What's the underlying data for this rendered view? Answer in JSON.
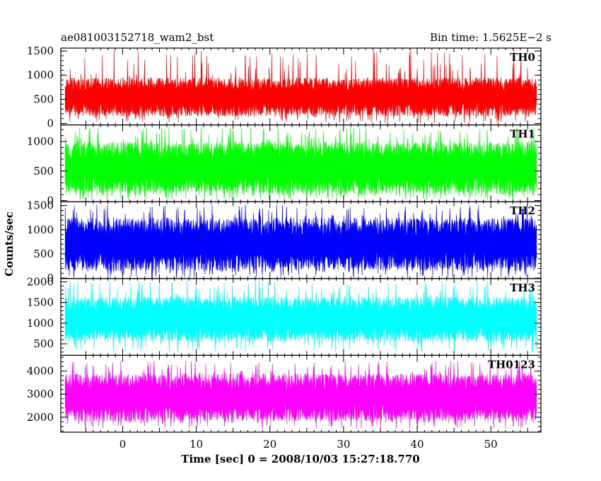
{
  "header": {
    "title": "ae081003152718_wam2_bst",
    "bin_time": "Bin time: 1.5625E−2 s"
  },
  "chart_data": {
    "type": "line",
    "title": "ae081003152718_wam2_bst",
    "subtitle": "Bin time: 1.5625E−2 s",
    "xlabel": "Time [sec] 0 = 2008/10/03 15:27:18.770",
    "ylabel": "Counts/sec",
    "xlim": [
      -8.4,
      56.8
    ],
    "x_data_range": [
      -7.8,
      56.2
    ],
    "xticks": [
      0,
      10,
      20,
      30,
      40,
      50
    ],
    "xtick_labels": [
      "0",
      "10",
      "20",
      "30",
      "40",
      "50"
    ],
    "bin_time_s": 0.015625,
    "grid": false,
    "legend": "none",
    "panels": [
      {
        "name": "TH0",
        "color": "#ff0000",
        "ylim": [
          -30,
          1560
        ],
        "yticks": [
          0,
          500,
          1000,
          1500
        ],
        "ytick_labels": [
          "0",
          "500",
          "1000",
          "1500"
        ],
        "typical_low": 150,
        "typical_high": 950,
        "min": 0,
        "max": 1560
      },
      {
        "name": "TH1",
        "color": "#00ff00",
        "ylim": [
          -20,
          1280
        ],
        "yticks": [
          0,
          500,
          1000
        ],
        "ytick_labels": [
          "0",
          "500",
          "1000"
        ],
        "typical_low": 100,
        "typical_high": 1000,
        "min": 0,
        "max": 1250
      },
      {
        "name": "TH2",
        "color": "#0000ff",
        "ylim": [
          -10,
          1580
        ],
        "yticks": [
          0,
          500,
          1000,
          1500
        ],
        "ytick_labels": [
          "0",
          "500",
          "1000",
          "1500"
        ],
        "typical_low": 150,
        "typical_high": 1250,
        "min": 0,
        "max": 1520
      },
      {
        "name": "TH3",
        "color": "#00ffff",
        "ylim": [
          220,
          2080
        ],
        "yticks": [
          500,
          1000,
          1500,
          2000
        ],
        "ytick_labels": [
          "500",
          "1000",
          "1500",
          "2000"
        ],
        "typical_low": 550,
        "typical_high": 1650,
        "min": 300,
        "max": 2040
      },
      {
        "name": "TH0123",
        "color": "#ff00ff",
        "ylim": [
          1350,
          4680
        ],
        "yticks": [
          2000,
          3000,
          4000
        ],
        "ytick_labels": [
          "2000",
          "3000",
          "4000"
        ],
        "typical_low": 1800,
        "typical_high": 3900,
        "min": 1500,
        "max": 4450
      }
    ]
  }
}
